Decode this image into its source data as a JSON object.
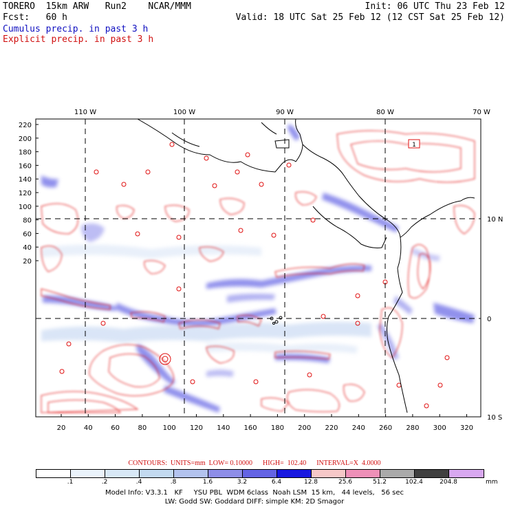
{
  "header": {
    "line1_left": "TORERO  15km ARW   Run2    NCAR/MMM",
    "line1_right": "Init: 06 UTC Thu 23 Feb 12",
    "line2_left": "Fcst:   60 h",
    "line2_right": "Valid: 18 UTC Sat 25 Feb 12 (12 CST Sat 25 Feb 12)",
    "line3": "Cumulus precip. in past 3 h",
    "line4": "Explicit precip. in past 3 h"
  },
  "map": {
    "top_lon_labels": [
      "110 W",
      "100 W",
      "90 W",
      "80 W",
      "70 W"
    ],
    "right_lat_labels": [
      "10 N",
      "0",
      "10 S"
    ],
    "y_ticks": [
      "220",
      "200",
      "180",
      "160",
      "140",
      "120",
      "100",
      "80",
      "60",
      "40",
      "20"
    ],
    "x_ticks": [
      "20",
      "40",
      "60",
      "80",
      "100",
      "120",
      "140",
      "160",
      "180",
      "200",
      "220",
      "240",
      "260",
      "280",
      "300",
      "320"
    ],
    "box_label": "1"
  },
  "colors": {
    "cumulus": "#2020c0",
    "explicit": "#e01010",
    "coast": "#000000"
  },
  "contours": {
    "text": "CONTOURS:  UNITS=mm  LOW= 0.10000      HIGH=  102.40      INTERVAL=X  4.0000"
  },
  "colorbar": {
    "labels": [
      ".1",
      ".2",
      ".4",
      ".8",
      "1.6",
      "3.2",
      "6.4",
      "12.8",
      "25.6",
      "51.2",
      "102.4",
      "204.8"
    ],
    "colors": [
      "#ffffff",
      "#eaf3fb",
      "#d8e8f6",
      "#c3daf0",
      "#b3c3ee",
      "#8e8ee8",
      "#6464e4",
      "#1818e0",
      "#f6c8c8",
      "#ee90b8",
      "#aaaaaa",
      "#404040",
      "#d8a8f0"
    ],
    "unit": "mm"
  },
  "footer": {
    "line1": "Model Info: V3.3.1   KF     YSU PBL  WDM 6class  Noah LSM  15 km,   44 levels,   56 sec",
    "line2": "LW: Godd SW: Goddard DIFF: simple KM: 2D Smagor"
  }
}
